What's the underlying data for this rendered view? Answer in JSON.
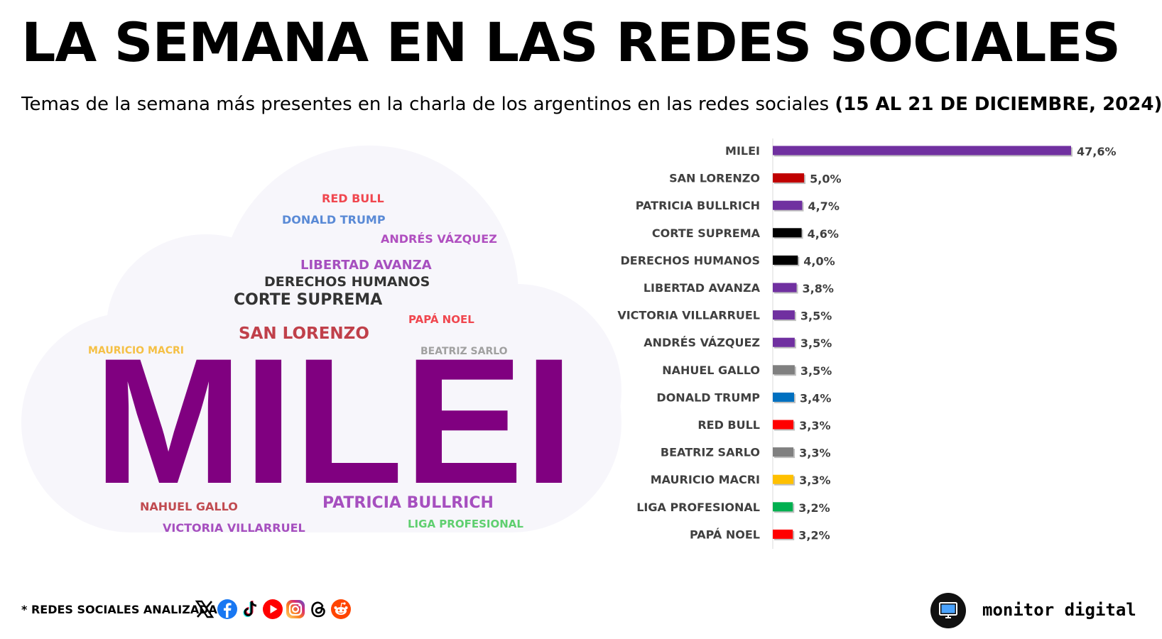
{
  "header": {
    "title": "LA SEMANA EN LAS REDES SOCIALES",
    "subtitle": "Temas de la semana más presentes en la charla de los argentinos en las redes sociales",
    "subtitle_dates": "(15 AL 21 DE DICIEMBRE, 2024)"
  },
  "word_cloud": {
    "words": [
      {
        "text": "RED BULL",
        "color": "#f0474f"
      },
      {
        "text": "DONALD TRUMP",
        "color": "#5a8ad6"
      },
      {
        "text": "ANDRÉS VÁZQUEZ",
        "color": "#b04fc0"
      },
      {
        "text": "LIBERTAD AVANZA",
        "color": "#a64fbf"
      },
      {
        "text": "DERECHOS HUMANOS",
        "color": "#333333"
      },
      {
        "text": "CORTE SUPREMA",
        "color": "#333333"
      },
      {
        "text": "PAPÁ NOEL",
        "color": "#f0474f"
      },
      {
        "text": "SAN LORENZO",
        "color": "#c0404a"
      },
      {
        "text": "MAURICIO MACRI",
        "color": "#f5c045"
      },
      {
        "text": "BEATRIZ SARLO",
        "color": "#a0a0a0"
      },
      {
        "text": "MILEI",
        "color": "#800080"
      },
      {
        "text": "NAHUEL GALLO",
        "color": "#c04a50"
      },
      {
        "text": "PATRICIA BULLRICH",
        "color": "#a64fbf"
      },
      {
        "text": "VICTORIA VILLARRUEL",
        "color": "#a64fbf"
      },
      {
        "text": "LIGA PROFESIONAL",
        "color": "#5fcf6f"
      }
    ]
  },
  "chart_data": {
    "type": "bar",
    "orientation": "horizontal",
    "categories": [
      "MILEI",
      "SAN LORENZO",
      "PATRICIA BULLRICH",
      "CORTE SUPREMA",
      "DERECHOS HUMANOS",
      "LIBERTAD AVANZA",
      "VICTORIA VILLARRUEL",
      "ANDRÉS VÁZQUEZ",
      "NAHUEL GALLO",
      "DONALD TRUMP",
      "RED BULL",
      "BEATRIZ SARLO",
      "MAURICIO MACRI",
      "LIGA PROFESIONAL",
      "PAPÁ NOEL"
    ],
    "values": [
      47.6,
      5.0,
      4.7,
      4.6,
      4.0,
      3.8,
      3.5,
      3.5,
      3.5,
      3.4,
      3.3,
      3.3,
      3.3,
      3.2,
      3.2
    ],
    "value_labels": [
      "47,6%",
      "5,0%",
      "4,7%",
      "4,6%",
      "4,0%",
      "3,8%",
      "3,5%",
      "3,5%",
      "3,5%",
      "3,4%",
      "3,3%",
      "3,3%",
      "3,3%",
      "3,2%",
      "3,2%"
    ],
    "colors": [
      "#7030a0",
      "#c00000",
      "#7030a0",
      "#000000",
      "#000000",
      "#7030a0",
      "#7030a0",
      "#7030a0",
      "#808080",
      "#0070c0",
      "#ff0000",
      "#808080",
      "#ffc000",
      "#00b050",
      "#ff0000"
    ],
    "xlim": [
      0,
      47.6
    ],
    "title": "",
    "xlabel": "",
    "ylabel": "",
    "grid": false,
    "legend": "none"
  },
  "footer": {
    "networks_label": "* REDES SOCIALES ANALIZADAS",
    "networks": [
      {
        "icon": "x-icon",
        "color": "#000000"
      },
      {
        "icon": "facebook-icon",
        "color": "#1877f2"
      },
      {
        "icon": "tiktok-icon",
        "color": "#000000"
      },
      {
        "icon": "youtube-icon",
        "color": "#ff0000"
      },
      {
        "icon": "instagram-icon",
        "color": "#e1306c"
      },
      {
        "icon": "threads-icon",
        "color": "#000000"
      },
      {
        "icon": "reddit-icon",
        "color": "#ff4500"
      }
    ],
    "brand": "monitor digital",
    "brand_icon": "monitor-icon"
  }
}
